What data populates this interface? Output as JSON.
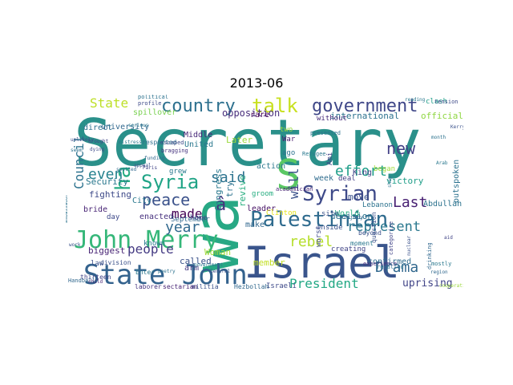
{
  "title": "2013-06",
  "cloud": {
    "words": [
      {
        "text": "Secretary",
        "color": "#2a908a"
      },
      {
        "text": "Israel",
        "color": "#3a558c"
      },
      {
        "text": "wa",
        "color": "#27a884"
      },
      {
        "text": "S",
        "color": "#5ac864"
      },
      {
        "text": "State John",
        "color": "#33628d"
      },
      {
        "text": "John Merry",
        "color": "#35b779"
      },
      {
        "text": "Palestinian",
        "color": "#2f6b8e"
      },
      {
        "text": "government",
        "color": "#3f4788"
      },
      {
        "text": "country",
        "color": "#2d708e"
      },
      {
        "text": "talk",
        "color": "#c8e020"
      },
      {
        "text": "Syrian",
        "color": "#3e4a89"
      },
      {
        "text": "Syria",
        "color": "#20a486"
      },
      {
        "text": "ha",
        "color": "#25ab82"
      },
      {
        "text": "peace",
        "color": "#3b528b"
      },
      {
        "text": "said",
        "color": "#2c728e"
      },
      {
        "text": "â",
        "color": "#46327e"
      },
      {
        "text": "new",
        "color": "#424086"
      },
      {
        "text": "effort",
        "color": "#1f9e89"
      },
      {
        "text": "even",
        "color": "#26828e"
      },
      {
        "text": "year",
        "color": "#31688e"
      },
      {
        "text": "made",
        "color": "#440154"
      },
      {
        "text": "people",
        "color": "#443a83"
      },
      {
        "text": "Last",
        "color": "#482173"
      },
      {
        "text": "rebel",
        "color": "#b5de2b"
      },
      {
        "text": "represent",
        "color": "#2a788e"
      },
      {
        "text": "President",
        "color": "#22a884"
      },
      {
        "text": "Drama",
        "color": "#31688e"
      },
      {
        "text": "Council",
        "color": "#2c728e"
      },
      {
        "text": "State",
        "color": "#bddf26"
      },
      {
        "text": "will",
        "color": "#3b528b"
      },
      {
        "text": "uprising",
        "color": "#414487"
      },
      {
        "text": "opposition",
        "color": "#472d7b"
      },
      {
        "text": "international",
        "color": "#2c728e"
      },
      {
        "text": "official",
        "color": "#90d743"
      },
      {
        "text": "Security",
        "color": "#2a788e"
      },
      {
        "text": "fighting",
        "color": "#3e4a89"
      },
      {
        "text": "biggest",
        "color": "#482475"
      },
      {
        "text": "called",
        "color": "#3b528b"
      },
      {
        "text": "Woman",
        "color": "#a2da37"
      },
      {
        "text": "member",
        "color": "#c2df23"
      },
      {
        "text": "Congress",
        "color": "#2a788e"
      },
      {
        "text": "decision",
        "color": "#2c728e"
      },
      {
        "text": "victory",
        "color": "#1f9e89"
      },
      {
        "text": "World",
        "color": "#27ad81"
      },
      {
        "text": "confirmed",
        "color": "#2f6c8e"
      },
      {
        "text": "outspoken",
        "color": "#2c728e"
      },
      {
        "text": "spillover",
        "color": "#7ad151"
      },
      {
        "text": "university",
        "color": "#31688e"
      },
      {
        "text": "revive",
        "color": "#28ae80"
      },
      {
        "text": "Middle",
        "color": "#482878"
      },
      {
        "text": "United",
        "color": "#2a788e"
      },
      {
        "text": "Later",
        "color": "#9bd93c"
      },
      {
        "text": "rare",
        "color": "#440154"
      },
      {
        "text": "without",
        "color": "#472c7a"
      },
      {
        "text": "direct",
        "color": "#2d708e"
      },
      {
        "text": "King",
        "color": "#414487"
      },
      {
        "text": "week",
        "color": "#2f6c8e"
      },
      {
        "text": "deal",
        "color": "#433e85"
      },
      {
        "text": "move",
        "color": "#3b528b"
      },
      {
        "text": "Abdullah",
        "color": "#2c728e"
      },
      {
        "text": "make",
        "color": "#31688e"
      },
      {
        "text": "leader",
        "color": "#471365"
      },
      {
        "text": "groom",
        "color": "#27ad81"
      },
      {
        "text": "enacted",
        "color": "#46307e"
      },
      {
        "text": "bride",
        "color": "#482475"
      },
      {
        "text": "City",
        "color": "#2a788e"
      },
      {
        "text": "day",
        "color": "#3e4989"
      },
      {
        "text": "September",
        "color": "#31688e"
      },
      {
        "text": "home",
        "color": "#3e4a89"
      },
      {
        "text": "Clinton",
        "color": "#e5e419"
      },
      {
        "text": "law",
        "color": "#3b528b"
      },
      {
        "text": "arm",
        "color": "#443983"
      },
      {
        "text": "try",
        "color": "#2c728e"
      },
      {
        "text": "action",
        "color": "#2a788e"
      },
      {
        "text": "War",
        "color": "#481a6c"
      },
      {
        "text": "ago",
        "color": "#2c728e"
      },
      {
        "text": "inside",
        "color": "#3b528b"
      },
      {
        "text": "Lebanon",
        "color": "#2c728e"
      },
      {
        "text": "began",
        "color": "#9fda3a"
      },
      {
        "text": "creating",
        "color": "#414487"
      },
      {
        "text": "known",
        "color": "#2a788e"
      },
      {
        "text": "site",
        "color": "#3b528b"
      },
      {
        "text": "clash",
        "color": "#1f9e89"
      },
      {
        "text": "grew",
        "color": "#2a788e"
      },
      {
        "text": "two",
        "color": "#98d83e"
      },
      {
        "text": "Ami",
        "color": "#414487"
      },
      {
        "text": "Israeli",
        "color": "#3e4a89"
      },
      {
        "text": "Hezbollah",
        "color": "#31688e"
      },
      {
        "text": "militia",
        "color": "#3b528b"
      },
      {
        "text": "sectarian",
        "color": "#482475"
      },
      {
        "text": "laborer",
        "color": "#46337f"
      },
      {
        "text": "thirteen",
        "color": "#414487"
      },
      {
        "text": "division",
        "color": "#3b528b"
      },
      {
        "text": "Enter",
        "color": "#2a788e"
      },
      {
        "text": "respected",
        "color": "#2d708e"
      },
      {
        "text": "political",
        "color": "#2c728e"
      },
      {
        "text": "profile",
        "color": "#3e4a89"
      },
      {
        "text": "bragging",
        "color": "#46337f"
      },
      {
        "text": "escaped",
        "color": "#3e4a89"
      },
      {
        "text": "academician",
        "color": "#482475"
      },
      {
        "text": "injury",
        "color": "#31688e"
      },
      {
        "text": "beyond",
        "color": "#3b528b"
      },
      {
        "text": "worst",
        "color": "#3e4a89"
      },
      {
        "text": "Handball",
        "color": "#31688e"
      },
      {
        "text": "moment",
        "color": "#2a788e"
      },
      {
        "text": "experience",
        "color": "#46307e"
      },
      {
        "text": "presented",
        "color": "#2c728e"
      },
      {
        "text": "Refugee",
        "color": "#2a788e"
      },
      {
        "text": "recalled",
        "color": "#2c728e"
      },
      {
        "text": "question",
        "color": "#3b528b"
      },
      {
        "text": "categorize",
        "color": "#414487"
      },
      {
        "text": "drinking",
        "color": "#31688e"
      },
      {
        "text": "mostly",
        "color": "#2a788e"
      },
      {
        "text": "cooperation",
        "color": "#9bd93c"
      },
      {
        "text": "unlikely",
        "color": "#3e4a89"
      },
      {
        "text": "seem",
        "color": "#2c728e"
      },
      {
        "text": "serious",
        "color": "#2a788e"
      },
      {
        "text": "appeal",
        "color": "#3b528b"
      },
      {
        "text": "funding",
        "color": "#31688e"
      },
      {
        "text": "Paris",
        "color": "#414487"
      },
      {
        "text": "poetry",
        "color": "#2c728e"
      },
      {
        "text": "General",
        "color": "#3b528b"
      },
      {
        "text": "government",
        "color": "#2a788e"
      },
      {
        "text": "child",
        "color": "#482475"
      },
      {
        "text": "dying",
        "color": "#3e4a89"
      },
      {
        "text": "ambassador",
        "color": "#2c728e"
      },
      {
        "text": "mistress",
        "color": "#2a788e"
      },
      {
        "text": "spotted",
        "color": "#31688e"
      },
      {
        "text": "work",
        "color": "#3b528b"
      },
      {
        "text": "brought",
        "color": "#414487"
      },
      {
        "text": "shop",
        "color": "#2c728e"
      },
      {
        "text": "reading",
        "color": "#2a788e"
      },
      {
        "text": "nuclear",
        "color": "#3b528b"
      },
      {
        "text": "region",
        "color": "#31688e"
      },
      {
        "text": "tension",
        "color": "#3e4a89"
      },
      {
        "text": "month",
        "color": "#2c728e"
      },
      {
        "text": "Arab",
        "color": "#2a788e"
      },
      {
        "text": "aid",
        "color": "#414487"
      },
      {
        "text": "Kerry",
        "color": "#3b528b"
      },
      {
        "text": "border",
        "color": "#2a788e"
      }
    ]
  }
}
